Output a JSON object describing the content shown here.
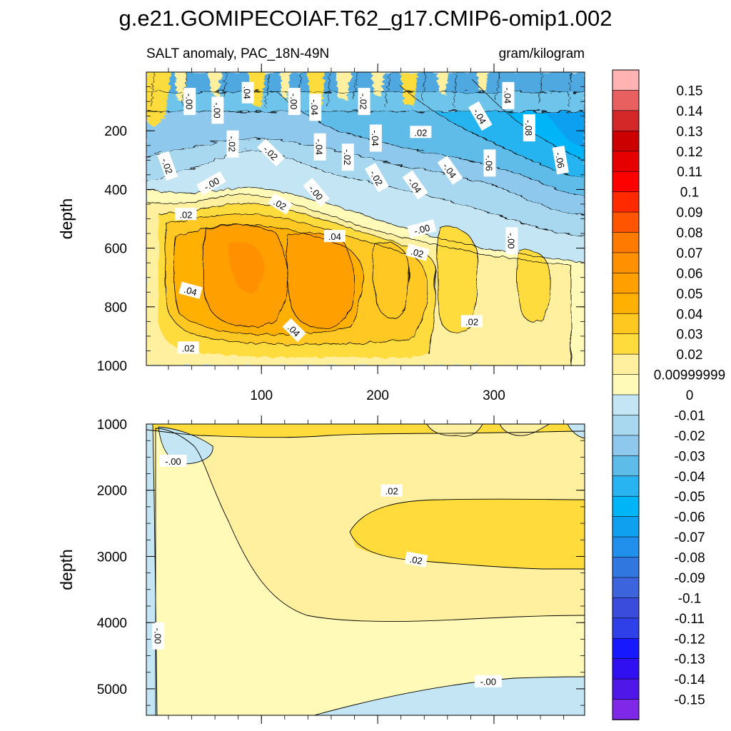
{
  "chart_data": {
    "type": "contour",
    "title": "g.e21.GOMIPECOIAF.T62_g17.CMIP6-omip1.002",
    "subtitle_left": "SALT anomaly, PAC_18N-49N",
    "subtitle_right": "gram/kilogram",
    "top_panel": {
      "ylabel": "depth",
      "ylim": [
        1000,
        0
      ],
      "yticks": [
        200,
        400,
        600,
        800,
        1000
      ],
      "xlim": [
        1,
        378
      ],
      "xticks": [
        100,
        200,
        300
      ],
      "contour_labels": [
        {
          "text": ".04",
          "x": 88,
          "y": 70,
          "rot": 90
        },
        {
          "text": "-.00",
          "x": 38,
          "y": 100,
          "rot": 90
        },
        {
          "text": "-.00",
          "x": 62,
          "y": 130,
          "rot": 90
        },
        {
          "text": "-.00",
          "x": 128,
          "y": 100,
          "rot": 90
        },
        {
          "text": "-.04",
          "x": 146,
          "y": 120,
          "rot": 90
        },
        {
          "text": "-.02",
          "x": 188,
          "y": 100,
          "rot": 90
        },
        {
          "text": "-.04",
          "x": 312,
          "y": 80,
          "rot": 90
        },
        {
          "text": "-.04",
          "x": 288,
          "y": 150,
          "rot": 60
        },
        {
          "text": "-.08",
          "x": 330,
          "y": 190,
          "rot": 90
        },
        {
          "text": ".02",
          "x": 237,
          "y": 205,
          "rot": 0
        },
        {
          "text": "-.04",
          "x": 150,
          "y": 255,
          "rot": 90
        },
        {
          "text": "-.04",
          "x": 198,
          "y": 225,
          "rot": 90
        },
        {
          "text": "-.02",
          "x": 75,
          "y": 245,
          "rot": 90
        },
        {
          "text": "-.02",
          "x": 108,
          "y": 275,
          "rot": 45
        },
        {
          "text": "-.02",
          "x": 174,
          "y": 290,
          "rot": 90
        },
        {
          "text": "-.02",
          "x": 19,
          "y": 320,
          "rot": 70
        },
        {
          "text": "-.06",
          "x": 296,
          "y": 310,
          "rot": 90
        },
        {
          "text": "-.06",
          "x": 357,
          "y": 300,
          "rot": 80
        },
        {
          "text": "-.04",
          "x": 262,
          "y": 335,
          "rot": 55
        },
        {
          "text": "-.02",
          "x": 199,
          "y": 360,
          "rot": 60
        },
        {
          "text": "-.04",
          "x": 232,
          "y": 385,
          "rot": 55
        },
        {
          "text": "-.00",
          "x": 57,
          "y": 380,
          "rot": -30
        },
        {
          "text": "-.00",
          "x": 147,
          "y": 410,
          "rot": 50
        },
        {
          "text": ".02",
          "x": 116,
          "y": 450,
          "rot": 30
        },
        {
          "text": ".02",
          "x": 35,
          "y": 485,
          "rot": 0
        },
        {
          "text": "-.00",
          "x": 238,
          "y": 535,
          "rot": -15
        },
        {
          "text": ".04",
          "x": 163,
          "y": 560,
          "rot": 0
        },
        {
          "text": "-.00",
          "x": 315,
          "y": 575,
          "rot": 90
        },
        {
          "text": ".02",
          "x": 234,
          "y": 615,
          "rot": 15
        },
        {
          "text": ".04",
          "x": 39,
          "y": 745,
          "rot": 15
        },
        {
          "text": ".02",
          "x": 281,
          "y": 850,
          "rot": 0
        },
        {
          "text": ".04",
          "x": 128,
          "y": 880,
          "rot": 45
        },
        {
          "text": ".02",
          "x": 37,
          "y": 940,
          "rot": 0
        }
      ]
    },
    "bottom_panel": {
      "ylabel": "depth",
      "ylim": [
        5400,
        1000
      ],
      "yticks": [
        1000,
        2000,
        3000,
        4000,
        5000
      ],
      "xlim": [
        1,
        378
      ],
      "contour_labels": [
        {
          "text": "-.00",
          "x": 24,
          "y": 1560,
          "rot": 0
        },
        {
          "text": ".02",
          "x": 212,
          "y": 2010,
          "rot": 0
        },
        {
          "text": ".02",
          "x": 233,
          "y": 3050,
          "rot": 10
        },
        {
          "text": "-.00",
          "x": 11,
          "y": 4200,
          "rot": 90
        },
        {
          "text": "-.00",
          "x": 295,
          "y": 4890,
          "rot": 0
        }
      ]
    },
    "colorbar": {
      "labels": [
        "0.15",
        "0.14",
        "0.13",
        "0.12",
        "0.11",
        "0.1",
        "0.09",
        "0.08",
        "0.07",
        "0.06",
        "0.05",
        "0.04",
        "0.03",
        "0.02",
        "0.00999999",
        "0",
        "-0.01",
        "-0.02",
        "-0.03",
        "-0.04",
        "-0.05",
        "-0.06",
        "-0.07",
        "-0.08",
        "-0.09",
        "-0.1",
        "-0.11",
        "-0.12",
        "-0.13",
        "-0.14",
        "-0.15"
      ],
      "colors": [
        "#ffb3b3",
        "#e86060",
        "#d42828",
        "#cc0000",
        "#e60000",
        "#ff0000",
        "#ff2a00",
        "#ff5500",
        "#ff7a00",
        "#ff9000",
        "#ffa000",
        "#ffb000",
        "#ffc820",
        "#ffdc3c",
        "#fff0a0",
        "#fffab8",
        "#c4e6f4",
        "#a8d8f0",
        "#8ec8ec",
        "#5ebce8",
        "#28b4f0",
        "#00b4f8",
        "#10a0f0",
        "#2090ec",
        "#3078e0",
        "#3c64dc",
        "#3a4cdc",
        "#3040e8",
        "#1818ff",
        "#3010f0",
        "#5018e8",
        "#8028e8"
      ]
    }
  }
}
